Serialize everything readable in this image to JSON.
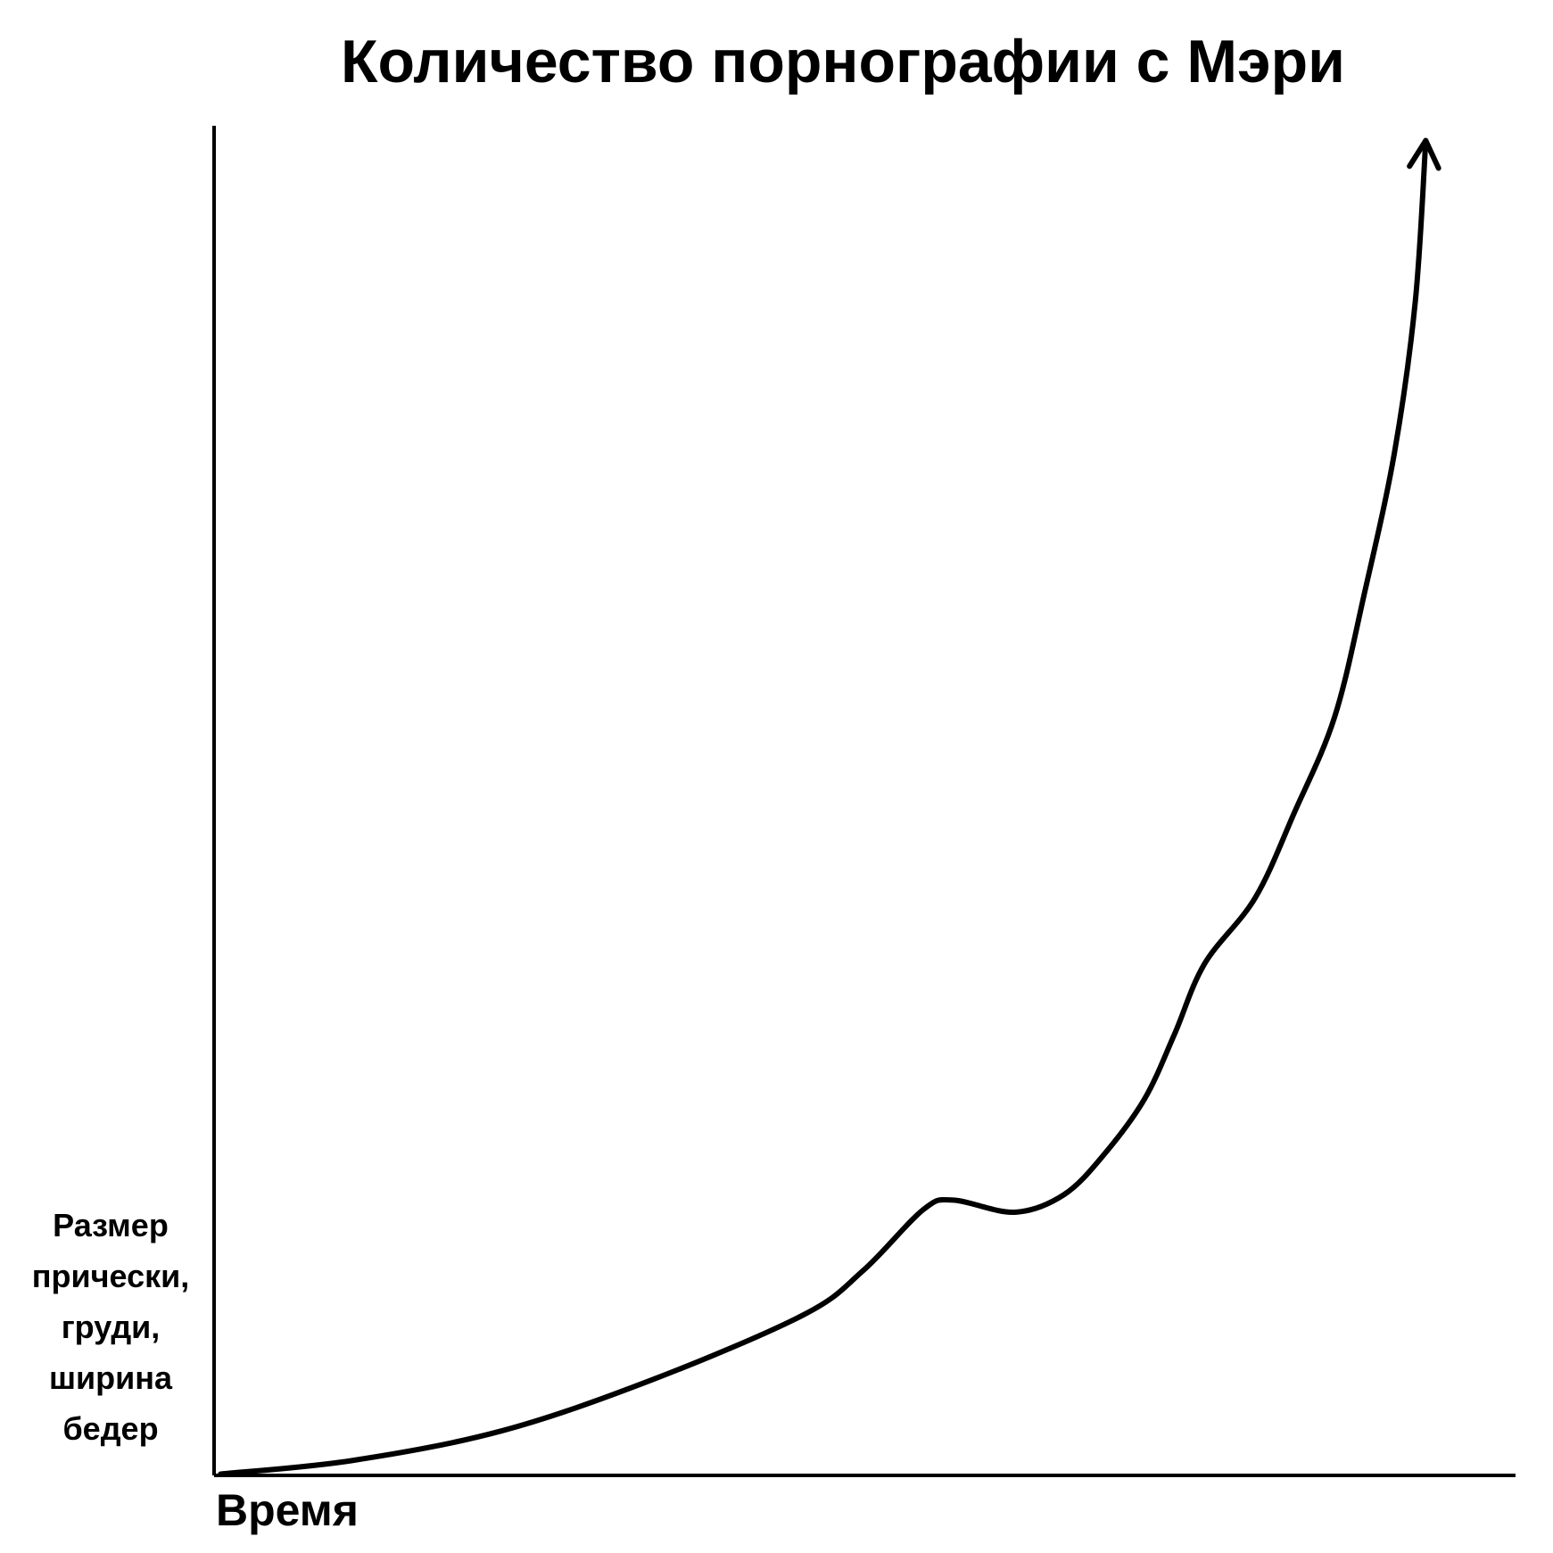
{
  "chart_data": {
    "type": "line",
    "title": "Количество порнографии с Мэри",
    "xlabel": "Время",
    "ylabel": "Размер\nпрически,\nгруди,\nширина\nбедер",
    "x": [
      0.5,
      10.6,
      22.1,
      33.7,
      45.3,
      49.9,
      54.5,
      56.8,
      61.5,
      65.3,
      68.4,
      71.5,
      73.8,
      76.1,
      80.0,
      83.0,
      86.1,
      88.4,
      90.7,
      92.3,
      93.1
    ],
    "values": [
      0.1,
      1.1,
      3.3,
      7.1,
      11.9,
      15.2,
      19.7,
      20.4,
      19.5,
      20.8,
      23.8,
      27.9,
      32.7,
      37.9,
      42.8,
      49.1,
      56.2,
      65.4,
      75.8,
      87.0,
      98.9
    ],
    "color": "#000000",
    "xlim": [
      0,
      100
    ],
    "ylim": [
      0,
      100
    ]
  }
}
